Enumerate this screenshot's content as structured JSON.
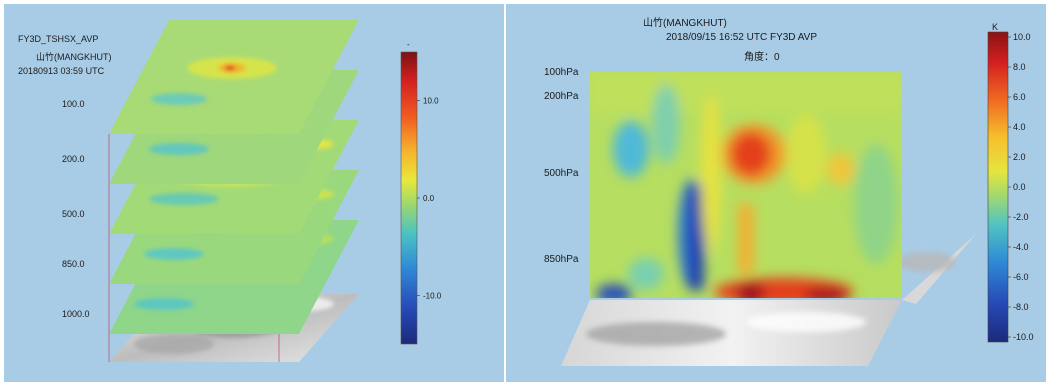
{
  "colors": {
    "background": "#a9cce6",
    "colormap": [
      "#1f2f8f",
      "#2b63c8",
      "#35a6dd",
      "#59c9b0",
      "#9fd86b",
      "#e9e53b",
      "#f6a12a",
      "#e2401f",
      "#8f1313"
    ]
  },
  "left_panel": {
    "title_lines": [
      "FY3D_TSHSX_AVP",
      "山竹(MANGKHUT)",
      "20180913 03:59 UTC"
    ],
    "colorbar_unit": "-"
  },
  "right_panel": {
    "title_lines": [
      "山竹(MANGKHUT)",
      "2018/09/15 16:52 UTC    FY3D AVP",
      "角度：0"
    ],
    "colorbar_unit": "K"
  },
  "chart_data": [
    {
      "type": "heatmap",
      "title": "FY3D_TSHSX_AVP",
      "subtitle": "山竹(MANGKHUT) 20180913 03:59 UTC",
      "layers": [
        "100.0",
        "200.0",
        "500.0",
        "850.0",
        "1000.0"
      ],
      "colorbar": {
        "ticks": [
          "10.0",
          "0.0",
          "-10.0"
        ],
        "range": [
          -15,
          15
        ],
        "unit": "-"
      }
    },
    {
      "type": "heatmap",
      "title": "山竹(MANGKHUT)",
      "subtitle": "2018/09/15 16:52 UTC    FY3D AVP",
      "annotation": "角度：0",
      "yticks": [
        "100hPa",
        "200hPa",
        "500hPa",
        "850hPa"
      ],
      "colorbar": {
        "unit": "K",
        "range": [
          -10,
          10
        ],
        "ticks": [
          "10.0",
          "8.0",
          "6.0",
          "4.0",
          "2.0",
          "0.0",
          "-2.0",
          "-4.0",
          "-6.0",
          "-8.0",
          "-10.0"
        ]
      }
    }
  ]
}
